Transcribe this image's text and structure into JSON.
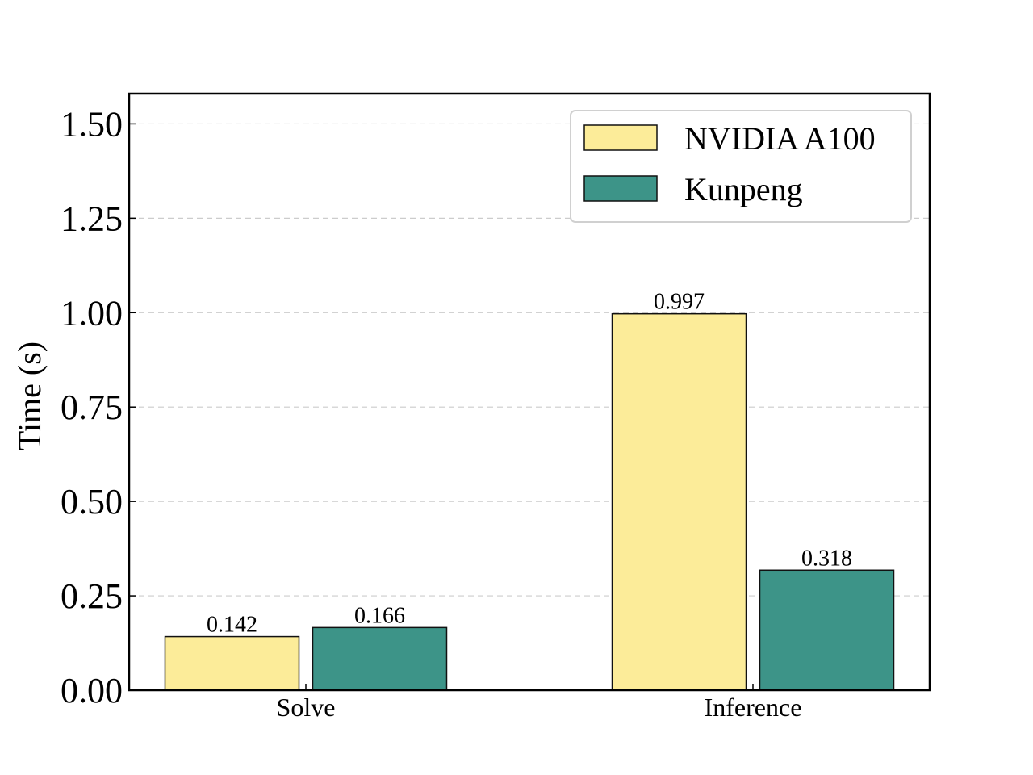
{
  "chart_data": {
    "type": "bar",
    "title": "",
    "xlabel": "",
    "ylabel": "Time (s)",
    "ylim": [
      0,
      1.58
    ],
    "yticks": [
      0.0,
      0.25,
      0.5,
      0.75,
      1.0,
      1.25,
      1.5
    ],
    "ytick_labels": [
      "0.00",
      "0.25",
      "0.50",
      "0.75",
      "1.00",
      "1.25",
      "1.50"
    ],
    "grid": "y-dashed",
    "legend_position": "top-right",
    "categories": [
      "Solve",
      "Inference"
    ],
    "series": [
      {
        "name": "NVIDIA A100",
        "color": "#fcec99",
        "values": [
          0.142,
          0.997
        ],
        "value_labels": [
          "0.142",
          "0.997"
        ]
      },
      {
        "name": "Kunpeng",
        "color": "#3d9488",
        "values": [
          0.166,
          0.318
        ],
        "value_labels": [
          "0.166",
          "0.318"
        ]
      }
    ]
  }
}
